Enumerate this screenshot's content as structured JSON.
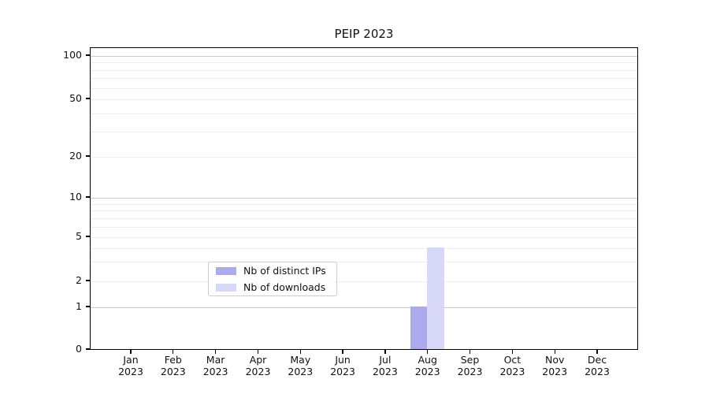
{
  "title": "PEIP 2023",
  "chart_data": {
    "type": "bar",
    "title": "PEIP 2023",
    "categories": [
      "Jan",
      "Feb",
      "Mar",
      "Apr",
      "May",
      "Jun",
      "Jul",
      "Aug",
      "Sep",
      "Oct",
      "Nov",
      "Dec"
    ],
    "category_year": "2023",
    "series": [
      {
        "name": "Nb of distinct IPs",
        "color": "#aaaaec",
        "values": [
          0,
          0,
          0,
          0,
          0,
          0,
          0,
          1,
          0,
          0,
          0,
          0
        ]
      },
      {
        "name": "Nb of downloads",
        "color": "#d8d8f8",
        "values": [
          0,
          0,
          0,
          0,
          0,
          0,
          0,
          4,
          0,
          0,
          0,
          0
        ]
      }
    ],
    "xlabel": "",
    "ylabel": "",
    "yticks": [
      0,
      1,
      2,
      5,
      10,
      20,
      50,
      100
    ],
    "y_major_gridline_values": [
      1,
      10,
      100
    ],
    "y_minor_gridline_values": [
      2,
      3,
      4,
      5,
      6,
      7,
      8,
      9,
      20,
      30,
      40,
      50,
      60,
      70,
      80,
      90
    ],
    "ylim": [
      0,
      115
    ],
    "scale": "log-like (compressed linear below 1)",
    "grid": "horizontal, major and minor",
    "legend_position": "lower center"
  },
  "legend": {
    "items": [
      {
        "label": "Nb of distinct IPs",
        "color": "#aaaaec"
      },
      {
        "label": "Nb of downloads",
        "color": "#d8d8f8"
      }
    ]
  },
  "colors": {
    "background": "#ffffff",
    "spine": "#000000",
    "text": "#111111",
    "major_grid": "#c9c9c9",
    "minor_grid": "#efefef",
    "legend_border": "#cccccc"
  }
}
